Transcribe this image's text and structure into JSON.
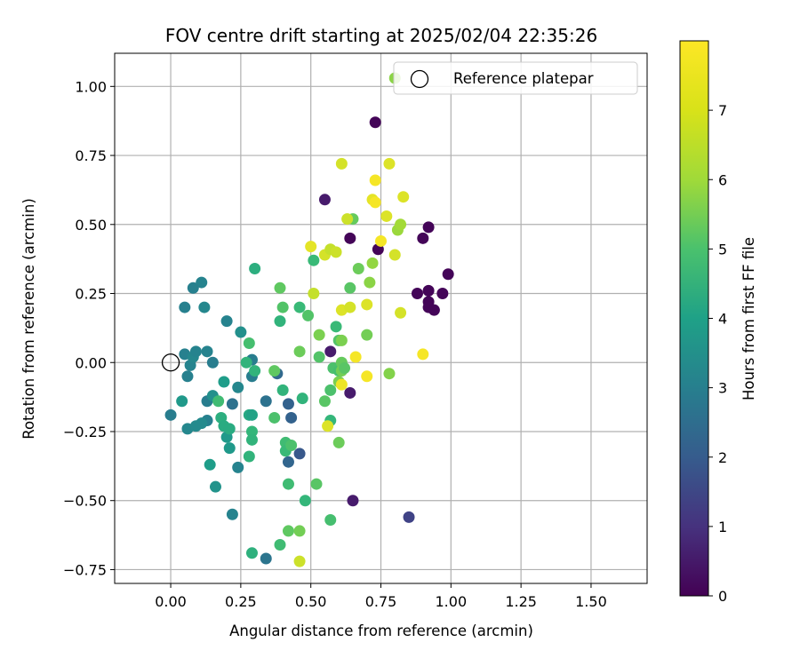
{
  "chart_data": {
    "type": "scatter",
    "title": "FOV centre drift starting at 2025/02/04 22:35:26",
    "xlabel": "Angular distance from reference (arcmin)",
    "ylabel": "Rotation from reference (arcmin)",
    "xlim": [
      -0.2,
      1.7
    ],
    "ylim": [
      -0.8,
      1.12
    ],
    "xticks": [
      0.0,
      0.25,
      0.5,
      0.75,
      1.0,
      1.25,
      1.5
    ],
    "xtick_labels": [
      "0.00",
      "0.25",
      "0.50",
      "0.75",
      "1.00",
      "1.25",
      "1.50"
    ],
    "yticks": [
      -0.75,
      -0.5,
      -0.25,
      0.0,
      0.25,
      0.5,
      0.75,
      1.0
    ],
    "ytick_labels": [
      "−0.75",
      "−0.50",
      "−0.25",
      "0.00",
      "0.25",
      "0.50",
      "0.75",
      "1.00"
    ],
    "grid": true,
    "legend": {
      "position": "top-right",
      "entries": [
        "Reference platepar"
      ]
    },
    "reference_point": {
      "x": 0.0,
      "y": 0.0,
      "label": "Reference platepar"
    },
    "colorbar": {
      "label": "Hours from first FF file",
      "range": [
        0,
        8
      ],
      "ticks": [
        0,
        1,
        2,
        3,
        4,
        5,
        6,
        7
      ],
      "tick_labels": [
        "0",
        "1",
        "2",
        "3",
        "4",
        "5",
        "6",
        "7"
      ],
      "colormap": "viridis"
    },
    "points": [
      {
        "x": 0.73,
        "y": 0.87,
        "h": 0.1
      },
      {
        "x": 0.74,
        "y": 0.41,
        "h": 0.1
      },
      {
        "x": 0.64,
        "y": 0.45,
        "h": 0.1
      },
      {
        "x": 0.9,
        "y": 0.45,
        "h": 0.1
      },
      {
        "x": 0.92,
        "y": 0.49,
        "h": 0.1
      },
      {
        "x": 0.88,
        "y": 0.25,
        "h": 0.1
      },
      {
        "x": 0.92,
        "y": 0.26,
        "h": 0.1
      },
      {
        "x": 0.92,
        "y": 0.22,
        "h": 0.1
      },
      {
        "x": 0.92,
        "y": 0.2,
        "h": 0.1
      },
      {
        "x": 0.94,
        "y": 0.19,
        "h": 0.1
      },
      {
        "x": 0.97,
        "y": 0.25,
        "h": 0.1
      },
      {
        "x": 0.99,
        "y": 0.32,
        "h": 0.1
      },
      {
        "x": 0.55,
        "y": 0.59,
        "h": 0.6
      },
      {
        "x": 0.57,
        "y": 0.04,
        "h": 0.6
      },
      {
        "x": 0.64,
        "y": -0.11,
        "h": 0.6
      },
      {
        "x": 0.65,
        "y": -0.5,
        "h": 0.6
      },
      {
        "x": 0.85,
        "y": -0.56,
        "h": 1.6
      },
      {
        "x": 0.46,
        "y": -0.33,
        "h": 2.2
      },
      {
        "x": 0.42,
        "y": -0.36,
        "h": 2.6
      },
      {
        "x": 0.42,
        "y": -0.15,
        "h": 2.5
      },
      {
        "x": 0.43,
        "y": -0.2,
        "h": 2.5
      },
      {
        "x": 0.38,
        "y": -0.04,
        "h": 2.7
      },
      {
        "x": 0.34,
        "y": -0.14,
        "h": 3.0
      },
      {
        "x": 0.34,
        "y": -0.71,
        "h": 3.1
      },
      {
        "x": 0.29,
        "y": -0.05,
        "h": 3.4
      },
      {
        "x": 0.29,
        "y": 0.01,
        "h": 3.4
      },
      {
        "x": 0.22,
        "y": -0.15,
        "h": 3.0
      },
      {
        "x": 0.22,
        "y": -0.55,
        "h": 3.6
      },
      {
        "x": 0.24,
        "y": -0.38,
        "h": 3.6
      },
      {
        "x": 0.24,
        "y": -0.09,
        "h": 3.7
      },
      {
        "x": 0.2,
        "y": 0.15,
        "h": 3.6
      },
      {
        "x": 0.25,
        "y": 0.11,
        "h": 4.0
      },
      {
        "x": 0.15,
        "y": 0.0,
        "h": 3.4
      },
      {
        "x": 0.13,
        "y": 0.04,
        "h": 3.6
      },
      {
        "x": 0.13,
        "y": -0.21,
        "h": 3.5
      },
      {
        "x": 0.13,
        "y": -0.14,
        "h": 3.4
      },
      {
        "x": 0.12,
        "y": 0.2,
        "h": 3.7
      },
      {
        "x": 0.11,
        "y": 0.29,
        "h": 3.6
      },
      {
        "x": 0.08,
        "y": 0.27,
        "h": 3.5
      },
      {
        "x": 0.05,
        "y": 0.2,
        "h": 3.5
      },
      {
        "x": 0.05,
        "y": 0.03,
        "h": 3.5
      },
      {
        "x": 0.06,
        "y": -0.05,
        "h": 3.5
      },
      {
        "x": 0.07,
        "y": -0.01,
        "h": 3.6
      },
      {
        "x": 0.08,
        "y": 0.02,
        "h": 3.7
      },
      {
        "x": 0.09,
        "y": 0.04,
        "h": 3.6
      },
      {
        "x": 0.0,
        "y": -0.19,
        "h": 3.4
      },
      {
        "x": 0.04,
        "y": -0.14,
        "h": 4.3
      },
      {
        "x": 0.06,
        "y": -0.24,
        "h": 3.7
      },
      {
        "x": 0.09,
        "y": -0.23,
        "h": 3.8
      },
      {
        "x": 0.11,
        "y": -0.22,
        "h": 3.8
      },
      {
        "x": 0.15,
        "y": -0.12,
        "h": 4.0
      },
      {
        "x": 0.16,
        "y": -0.45,
        "h": 4.1
      },
      {
        "x": 0.14,
        "y": -0.37,
        "h": 4.4
      },
      {
        "x": 0.19,
        "y": -0.07,
        "h": 4.4
      },
      {
        "x": 0.18,
        "y": -0.2,
        "h": 5.0
      },
      {
        "x": 0.19,
        "y": -0.23,
        "h": 4.9
      },
      {
        "x": 0.2,
        "y": -0.27,
        "h": 4.3
      },
      {
        "x": 0.21,
        "y": -0.31,
        "h": 4.3
      },
      {
        "x": 0.21,
        "y": -0.24,
        "h": 4.9
      },
      {
        "x": 0.17,
        "y": -0.14,
        "h": 5.5
      },
      {
        "x": 0.27,
        "y": 0.0,
        "h": 5.2
      },
      {
        "x": 0.28,
        "y": 0.07,
        "h": 5.6
      },
      {
        "x": 0.28,
        "y": -0.19,
        "h": 4.8
      },
      {
        "x": 0.29,
        "y": -0.19,
        "h": 4.6
      },
      {
        "x": 0.29,
        "y": -0.25,
        "h": 5.3
      },
      {
        "x": 0.29,
        "y": -0.28,
        "h": 5.2
      },
      {
        "x": 0.28,
        "y": -0.34,
        "h": 5.2
      },
      {
        "x": 0.3,
        "y": -0.03,
        "h": 5.2
      },
      {
        "x": 0.3,
        "y": 0.34,
        "h": 5.0
      },
      {
        "x": 0.29,
        "y": -0.69,
        "h": 5.1
      },
      {
        "x": 0.37,
        "y": -0.2,
        "h": 5.7
      },
      {
        "x": 0.37,
        "y": -0.03,
        "h": 6.0
      },
      {
        "x": 0.39,
        "y": 0.27,
        "h": 6.0
      },
      {
        "x": 0.39,
        "y": 0.15,
        "h": 5.2
      },
      {
        "x": 0.4,
        "y": 0.2,
        "h": 5.8
      },
      {
        "x": 0.4,
        "y": -0.1,
        "h": 5.2
      },
      {
        "x": 0.41,
        "y": -0.29,
        "h": 5.5
      },
      {
        "x": 0.41,
        "y": -0.32,
        "h": 5.4
      },
      {
        "x": 0.42,
        "y": -0.44,
        "h": 5.5
      },
      {
        "x": 0.39,
        "y": -0.66,
        "h": 5.5
      },
      {
        "x": 0.42,
        "y": -0.61,
        "h": 6.0
      },
      {
        "x": 0.43,
        "y": -0.3,
        "h": 5.7
      },
      {
        "x": 0.46,
        "y": 0.2,
        "h": 5.4
      },
      {
        "x": 0.46,
        "y": 0.04,
        "h": 6.2
      },
      {
        "x": 0.46,
        "y": -0.61,
        "h": 6.3
      },
      {
        "x": 0.47,
        "y": -0.13,
        "h": 5.2
      },
      {
        "x": 0.48,
        "y": -0.5,
        "h": 5.3
      },
      {
        "x": 0.49,
        "y": 0.17,
        "h": 5.8
      },
      {
        "x": 0.51,
        "y": 0.37,
        "h": 5.4
      },
      {
        "x": 0.52,
        "y": -0.44,
        "h": 5.9
      },
      {
        "x": 0.53,
        "y": 0.02,
        "h": 5.8
      },
      {
        "x": 0.53,
        "y": 0.1,
        "h": 6.4
      },
      {
        "x": 0.55,
        "y": -0.14,
        "h": 5.9
      },
      {
        "x": 0.57,
        "y": -0.21,
        "h": 5.3
      },
      {
        "x": 0.57,
        "y": -0.1,
        "h": 5.7
      },
      {
        "x": 0.57,
        "y": -0.57,
        "h": 5.6
      },
      {
        "x": 0.58,
        "y": -0.02,
        "h": 5.7
      },
      {
        "x": 0.59,
        "y": 0.13,
        "h": 5.4
      },
      {
        "x": 0.6,
        "y": -0.03,
        "h": 5.6
      },
      {
        "x": 0.6,
        "y": 0.08,
        "h": 5.8
      },
      {
        "x": 0.61,
        "y": 0.08,
        "h": 6.4
      },
      {
        "x": 0.61,
        "y": 0.0,
        "h": 6.1
      },
      {
        "x": 0.61,
        "y": -0.03,
        "h": 6.3
      },
      {
        "x": 0.62,
        "y": -0.02,
        "h": 5.9
      },
      {
        "x": 0.6,
        "y": -0.29,
        "h": 6.2
      },
      {
        "x": 0.6,
        "y": -0.07,
        "h": 6.4
      },
      {
        "x": 0.64,
        "y": 0.27,
        "h": 5.9
      },
      {
        "x": 0.65,
        "y": 0.52,
        "h": 6.1
      },
      {
        "x": 0.67,
        "y": 0.34,
        "h": 6.2
      },
      {
        "x": 0.7,
        "y": 0.1,
        "h": 6.3
      },
      {
        "x": 0.71,
        "y": 0.29,
        "h": 6.6
      },
      {
        "x": 0.72,
        "y": 0.36,
        "h": 6.7
      },
      {
        "x": 0.78,
        "y": -0.04,
        "h": 6.5
      },
      {
        "x": 0.81,
        "y": 0.48,
        "h": 6.8
      },
      {
        "x": 0.82,
        "y": 0.5,
        "h": 6.9
      },
      {
        "x": 0.8,
        "y": 1.03,
        "h": 6.6
      },
      {
        "x": 0.5,
        "y": 0.42,
        "h": 7.7
      },
      {
        "x": 0.51,
        "y": 0.25,
        "h": 7.3
      },
      {
        "x": 0.55,
        "y": 0.39,
        "h": 7.5
      },
      {
        "x": 0.56,
        "y": -0.23,
        "h": 7.6
      },
      {
        "x": 0.57,
        "y": 0.41,
        "h": 7.3
      },
      {
        "x": 0.59,
        "y": 0.4,
        "h": 7.4
      },
      {
        "x": 0.61,
        "y": 0.19,
        "h": 7.6
      },
      {
        "x": 0.61,
        "y": 0.72,
        "h": 7.5
      },
      {
        "x": 0.61,
        "y": -0.08,
        "h": 7.8
      },
      {
        "x": 0.63,
        "y": 0.52,
        "h": 7.4
      },
      {
        "x": 0.64,
        "y": 0.2,
        "h": 7.5
      },
      {
        "x": 0.66,
        "y": 0.02,
        "h": 7.9
      },
      {
        "x": 0.7,
        "y": 0.21,
        "h": 7.6
      },
      {
        "x": 0.7,
        "y": -0.05,
        "h": 7.9
      },
      {
        "x": 0.72,
        "y": 0.59,
        "h": 7.7
      },
      {
        "x": 0.73,
        "y": 0.58,
        "h": 7.9
      },
      {
        "x": 0.73,
        "y": 0.66,
        "h": 7.9
      },
      {
        "x": 0.75,
        "y": 0.44,
        "h": 7.9
      },
      {
        "x": 0.77,
        "y": 0.53,
        "h": 7.6
      },
      {
        "x": 0.78,
        "y": 0.72,
        "h": 7.6
      },
      {
        "x": 0.8,
        "y": 0.39,
        "h": 7.5
      },
      {
        "x": 0.82,
        "y": 0.18,
        "h": 7.5
      },
      {
        "x": 0.83,
        "y": 0.6,
        "h": 7.6
      },
      {
        "x": 0.9,
        "y": 0.03,
        "h": 7.9
      },
      {
        "x": 0.46,
        "y": -0.72,
        "h": 7.4
      }
    ]
  }
}
